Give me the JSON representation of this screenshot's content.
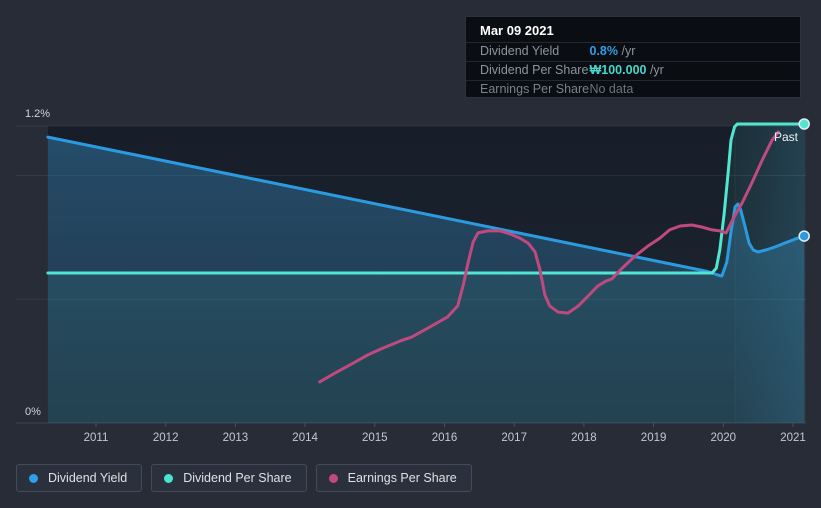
{
  "tooltip": {
    "date": "Mar 09 2021",
    "rows": [
      {
        "label": "Dividend Yield",
        "value": "0.8%",
        "suffix": " /yr"
      },
      {
        "label": "Dividend Per Share",
        "value": "₩100.000",
        "suffix": " /yr"
      },
      {
        "label": "Earnings Per Share",
        "value": "No data",
        "suffix": ""
      }
    ]
  },
  "legend": [
    {
      "label": "Dividend Yield",
      "color": "#2da1e8"
    },
    {
      "label": "Dividend Per Share",
      "color": "#49e3d0"
    },
    {
      "label": "Earnings Per Share",
      "color": "#c0497f"
    }
  ],
  "colors": {
    "page_background": "#272c36",
    "plot_background": "#1b2330",
    "tooltip_background": "#0a0d11",
    "yield_blue": "#2b9be0",
    "dps_teal": "#52e6d2",
    "eps_pink": "#c0497f",
    "grid": "rgba(255,255,255,0.07)",
    "axis": "#3c4553"
  },
  "chart_data": {
    "type": "line",
    "x_axis": {
      "unit": "year",
      "range": [
        2010.3,
        2021.2
      ]
    },
    "y_axis": {
      "top_label": "1.2%",
      "bottom_label": "0%",
      "min": 0,
      "max": 1.2,
      "unit": "percent",
      "gridlines_pct": [
        1.2,
        1.0,
        0.5
      ]
    },
    "x_ticks": [
      "2011",
      "2012",
      "2013",
      "2014",
      "2015",
      "2016",
      "2017",
      "2018",
      "2019",
      "2020",
      "2021"
    ],
    "annotations": [
      {
        "text": "Past",
        "x": 2020.73,
        "y": 1.14
      }
    ],
    "past_band": {
      "start_x": 2020.17,
      "end_x": 2021.17
    },
    "series": [
      {
        "name": "Dividend Yield",
        "color": "#2b9be0",
        "fill": "url(#gradBlue)",
        "end_dot": true,
        "points": [
          {
            "x": 2010.31,
            "y": 1.155
          },
          {
            "x": 2019.74,
            "y": 0.614
          },
          {
            "x": 2019.84,
            "y": 0.606
          },
          {
            "x": 2019.92,
            "y": 0.598
          },
          {
            "x": 2019.98,
            "y": 0.594
          },
          {
            "x": 2020.05,
            "y": 0.65
          },
          {
            "x": 2020.11,
            "y": 0.772
          },
          {
            "x": 2020.17,
            "y": 0.873
          },
          {
            "x": 2020.21,
            "y": 0.885
          },
          {
            "x": 2020.25,
            "y": 0.861
          },
          {
            "x": 2020.31,
            "y": 0.796
          },
          {
            "x": 2020.37,
            "y": 0.727
          },
          {
            "x": 2020.43,
            "y": 0.699
          },
          {
            "x": 2020.5,
            "y": 0.691
          },
          {
            "x": 2020.61,
            "y": 0.699
          },
          {
            "x": 2020.74,
            "y": 0.711
          },
          {
            "x": 2020.88,
            "y": 0.727
          },
          {
            "x": 2021.03,
            "y": 0.743
          },
          {
            "x": 2021.16,
            "y": 0.755
          }
        ]
      },
      {
        "name": "Dividend Per Share",
        "color": "#52e6d2",
        "fill": "rgba(80,225,210,0.08)",
        "end_dot": true,
        "note": "normalized to yield axis; actual value ₩100.000 /yr",
        "points": [
          {
            "x": 2010.31,
            "y": 0.606
          },
          {
            "x": 2019.84,
            "y": 0.606
          },
          {
            "x": 2019.9,
            "y": 0.626
          },
          {
            "x": 2019.95,
            "y": 0.699
          },
          {
            "x": 2020.01,
            "y": 0.84
          },
          {
            "x": 2020.07,
            "y": 1.014
          },
          {
            "x": 2020.11,
            "y": 1.143
          },
          {
            "x": 2020.16,
            "y": 1.196
          },
          {
            "x": 2020.2,
            "y": 1.208
          },
          {
            "x": 2021.16,
            "y": 1.208
          }
        ]
      },
      {
        "name": "Earnings Per Share",
        "color": "#c0497f",
        "fill": null,
        "end_dot": false,
        "points": [
          {
            "x": 2014.21,
            "y": 0.166
          },
          {
            "x": 2014.43,
            "y": 0.202
          },
          {
            "x": 2014.64,
            "y": 0.234
          },
          {
            "x": 2014.9,
            "y": 0.275
          },
          {
            "x": 2015.12,
            "y": 0.303
          },
          {
            "x": 2015.36,
            "y": 0.331
          },
          {
            "x": 2015.53,
            "y": 0.347
          },
          {
            "x": 2015.79,
            "y": 0.388
          },
          {
            "x": 2016.04,
            "y": 0.428
          },
          {
            "x": 2016.19,
            "y": 0.473
          },
          {
            "x": 2016.27,
            "y": 0.558
          },
          {
            "x": 2016.34,
            "y": 0.65
          },
          {
            "x": 2016.41,
            "y": 0.731
          },
          {
            "x": 2016.48,
            "y": 0.768
          },
          {
            "x": 2016.62,
            "y": 0.776
          },
          {
            "x": 2016.8,
            "y": 0.776
          },
          {
            "x": 2016.94,
            "y": 0.764
          },
          {
            "x": 2017.08,
            "y": 0.747
          },
          {
            "x": 2017.2,
            "y": 0.727
          },
          {
            "x": 2017.3,
            "y": 0.691
          },
          {
            "x": 2017.37,
            "y": 0.618
          },
          {
            "x": 2017.44,
            "y": 0.517
          },
          {
            "x": 2017.51,
            "y": 0.473
          },
          {
            "x": 2017.63,
            "y": 0.448
          },
          {
            "x": 2017.77,
            "y": 0.444
          },
          {
            "x": 2017.92,
            "y": 0.473
          },
          {
            "x": 2018.06,
            "y": 0.513
          },
          {
            "x": 2018.2,
            "y": 0.554
          },
          {
            "x": 2018.32,
            "y": 0.574
          },
          {
            "x": 2018.4,
            "y": 0.582
          },
          {
            "x": 2018.55,
            "y": 0.626
          },
          {
            "x": 2018.72,
            "y": 0.671
          },
          {
            "x": 2018.92,
            "y": 0.715
          },
          {
            "x": 2019.09,
            "y": 0.747
          },
          {
            "x": 2019.23,
            "y": 0.78
          },
          {
            "x": 2019.38,
            "y": 0.796
          },
          {
            "x": 2019.55,
            "y": 0.8
          },
          {
            "x": 2019.69,
            "y": 0.792
          },
          {
            "x": 2019.84,
            "y": 0.78
          },
          {
            "x": 2019.95,
            "y": 0.776
          },
          {
            "x": 2020.04,
            "y": 0.768
          },
          {
            "x": 2020.16,
            "y": 0.836
          },
          {
            "x": 2020.27,
            "y": 0.889
          },
          {
            "x": 2020.41,
            "y": 0.97
          },
          {
            "x": 2020.56,
            "y": 1.063
          },
          {
            "x": 2020.7,
            "y": 1.143
          },
          {
            "x": 2020.79,
            "y": 1.176
          }
        ]
      }
    ]
  }
}
